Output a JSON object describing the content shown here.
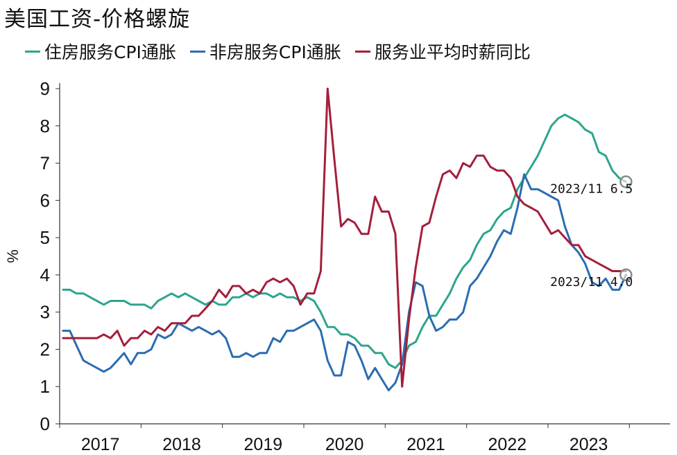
{
  "chart_data": {
    "type": "line",
    "title": "美国工资-价格螺旋",
    "ylabel": "%",
    "ylim": [
      0,
      9
    ],
    "yticks": [
      "0",
      "1",
      "2",
      "3",
      "4",
      "5",
      "6",
      "7",
      "8",
      "9"
    ],
    "xlim": [
      2016.5,
      2024.0
    ],
    "xticks": [
      {
        "label": "2017",
        "x": 2017.0
      },
      {
        "label": "2018",
        "x": 2018.0
      },
      {
        "label": "2019",
        "x": 2019.0
      },
      {
        "label": "2020",
        "x": 2020.0
      },
      {
        "label": "2021",
        "x": 2021.0
      },
      {
        "label": "2022",
        "x": 2022.0
      },
      {
        "label": "2023",
        "x": 2023.0
      }
    ],
    "grid": false,
    "legend_position": "top",
    "series": [
      {
        "name": "住房服务CPI通胀",
        "color": "#2ca58d",
        "points": [
          [
            2016.542,
            3.6
          ],
          [
            2016.625,
            3.6
          ],
          [
            2016.708,
            3.5
          ],
          [
            2016.792,
            3.5
          ],
          [
            2016.875,
            3.4
          ],
          [
            2016.958,
            3.3
          ],
          [
            2017.042,
            3.2
          ],
          [
            2017.125,
            3.3
          ],
          [
            2017.208,
            3.3
          ],
          [
            2017.292,
            3.3
          ],
          [
            2017.375,
            3.2
          ],
          [
            2017.458,
            3.2
          ],
          [
            2017.542,
            3.2
          ],
          [
            2017.625,
            3.1
          ],
          [
            2017.708,
            3.3
          ],
          [
            2017.792,
            3.4
          ],
          [
            2017.875,
            3.5
          ],
          [
            2017.958,
            3.4
          ],
          [
            2018.042,
            3.5
          ],
          [
            2018.125,
            3.4
          ],
          [
            2018.208,
            3.3
          ],
          [
            2018.292,
            3.2
          ],
          [
            2018.375,
            3.3
          ],
          [
            2018.458,
            3.2
          ],
          [
            2018.542,
            3.2
          ],
          [
            2018.625,
            3.4
          ],
          [
            2018.708,
            3.4
          ],
          [
            2018.792,
            3.5
          ],
          [
            2018.875,
            3.4
          ],
          [
            2018.958,
            3.5
          ],
          [
            2019.042,
            3.5
          ],
          [
            2019.125,
            3.4
          ],
          [
            2019.208,
            3.5
          ],
          [
            2019.292,
            3.4
          ],
          [
            2019.375,
            3.4
          ],
          [
            2019.458,
            3.3
          ],
          [
            2019.542,
            3.4
          ],
          [
            2019.625,
            3.3
          ],
          [
            2019.708,
            3.0
          ],
          [
            2019.792,
            2.6
          ],
          [
            2019.875,
            2.6
          ],
          [
            2019.958,
            2.4
          ],
          [
            2020.042,
            2.4
          ],
          [
            2020.125,
            2.3
          ],
          [
            2020.208,
            2.1
          ],
          [
            2020.292,
            2.1
          ],
          [
            2020.375,
            1.9
          ],
          [
            2020.458,
            1.9
          ],
          [
            2020.542,
            1.6
          ],
          [
            2020.625,
            1.5
          ],
          [
            2020.708,
            1.7
          ],
          [
            2020.792,
            2.1
          ],
          [
            2020.875,
            2.2
          ],
          [
            2020.958,
            2.6
          ],
          [
            2021.042,
            2.9
          ],
          [
            2021.125,
            2.9
          ],
          [
            2021.208,
            3.2
          ],
          [
            2021.292,
            3.5
          ],
          [
            2021.375,
            3.9
          ],
          [
            2021.458,
            4.2
          ],
          [
            2021.542,
            4.4
          ],
          [
            2021.625,
            4.8
          ],
          [
            2021.708,
            5.1
          ],
          [
            2021.792,
            5.2
          ],
          [
            2021.875,
            5.5
          ],
          [
            2021.958,
            5.7
          ],
          [
            2022.042,
            5.8
          ],
          [
            2022.125,
            6.3
          ],
          [
            2022.208,
            6.6
          ],
          [
            2022.292,
            6.9
          ],
          [
            2022.375,
            7.2
          ],
          [
            2022.458,
            7.6
          ],
          [
            2022.542,
            8.0
          ],
          [
            2022.625,
            8.2
          ],
          [
            2022.708,
            8.3
          ],
          [
            2022.792,
            8.2
          ],
          [
            2022.875,
            8.1
          ],
          [
            2022.958,
            7.9
          ],
          [
            2023.042,
            7.8
          ],
          [
            2023.125,
            7.3
          ],
          [
            2023.208,
            7.2
          ],
          [
            2023.292,
            6.8
          ],
          [
            2023.375,
            6.6
          ],
          [
            2023.458,
            6.5
          ]
        ]
      },
      {
        "name": "非房服务CPI通胀",
        "color": "#2b6cb0",
        "points": [
          [
            2016.542,
            2.5
          ],
          [
            2016.625,
            2.5
          ],
          [
            2016.708,
            2.1
          ],
          [
            2016.792,
            1.7
          ],
          [
            2016.875,
            1.6
          ],
          [
            2016.958,
            1.5
          ],
          [
            2017.042,
            1.4
          ],
          [
            2017.125,
            1.5
          ],
          [
            2017.208,
            1.7
          ],
          [
            2017.292,
            1.9
          ],
          [
            2017.375,
            1.6
          ],
          [
            2017.458,
            1.9
          ],
          [
            2017.542,
            1.9
          ],
          [
            2017.625,
            2.0
          ],
          [
            2017.708,
            2.4
          ],
          [
            2017.792,
            2.3
          ],
          [
            2017.875,
            2.4
          ],
          [
            2017.958,
            2.7
          ],
          [
            2018.042,
            2.6
          ],
          [
            2018.125,
            2.5
          ],
          [
            2018.208,
            2.6
          ],
          [
            2018.292,
            2.5
          ],
          [
            2018.375,
            2.4
          ],
          [
            2018.458,
            2.5
          ],
          [
            2018.542,
            2.3
          ],
          [
            2018.625,
            1.8
          ],
          [
            2018.708,
            1.8
          ],
          [
            2018.792,
            1.9
          ],
          [
            2018.875,
            1.8
          ],
          [
            2018.958,
            1.9
          ],
          [
            2019.042,
            1.9
          ],
          [
            2019.125,
            2.3
          ],
          [
            2019.208,
            2.2
          ],
          [
            2019.292,
            2.5
          ],
          [
            2019.375,
            2.5
          ],
          [
            2019.458,
            2.6
          ],
          [
            2019.542,
            2.7
          ],
          [
            2019.625,
            2.8
          ],
          [
            2019.708,
            2.5
          ],
          [
            2019.792,
            1.7
          ],
          [
            2019.875,
            1.3
          ],
          [
            2019.958,
            1.3
          ],
          [
            2020.042,
            2.2
          ],
          [
            2020.125,
            2.1
          ],
          [
            2020.208,
            1.7
          ],
          [
            2020.292,
            1.2
          ],
          [
            2020.375,
            1.5
          ],
          [
            2020.458,
            1.2
          ],
          [
            2020.542,
            0.9
          ],
          [
            2020.625,
            1.1
          ],
          [
            2020.708,
            1.6
          ],
          [
            2020.792,
            3.0
          ],
          [
            2020.875,
            3.8
          ],
          [
            2020.958,
            3.7
          ],
          [
            2021.042,
            2.9
          ],
          [
            2021.125,
            2.5
          ],
          [
            2021.208,
            2.6
          ],
          [
            2021.292,
            2.8
          ],
          [
            2021.375,
            2.8
          ],
          [
            2021.458,
            3.0
          ],
          [
            2021.542,
            3.7
          ],
          [
            2021.625,
            3.9
          ],
          [
            2021.708,
            4.2
          ],
          [
            2021.792,
            4.5
          ],
          [
            2021.875,
            4.9
          ],
          [
            2021.958,
            5.2
          ],
          [
            2022.042,
            5.1
          ],
          [
            2022.125,
            5.8
          ],
          [
            2022.208,
            6.7
          ],
          [
            2022.292,
            6.3
          ],
          [
            2022.375,
            6.3
          ],
          [
            2022.458,
            6.2
          ],
          [
            2022.542,
            6.1
          ],
          [
            2022.625,
            6.0
          ],
          [
            2022.708,
            5.3
          ],
          [
            2022.792,
            4.8
          ],
          [
            2022.875,
            4.6
          ],
          [
            2022.958,
            4.3
          ],
          [
            2023.042,
            3.8
          ],
          [
            2023.125,
            3.7
          ],
          [
            2023.208,
            3.9
          ],
          [
            2023.292,
            3.6
          ],
          [
            2023.375,
            3.6
          ],
          [
            2023.458,
            4.0
          ]
        ]
      },
      {
        "name": "服务业平均时薪同比",
        "color": "#a41e3a",
        "points": [
          [
            2016.542,
            2.3
          ],
          [
            2016.625,
            2.3
          ],
          [
            2016.708,
            2.3
          ],
          [
            2016.792,
            2.3
          ],
          [
            2016.875,
            2.3
          ],
          [
            2016.958,
            2.3
          ],
          [
            2017.042,
            2.4
          ],
          [
            2017.125,
            2.3
          ],
          [
            2017.208,
            2.5
          ],
          [
            2017.292,
            2.1
          ],
          [
            2017.375,
            2.3
          ],
          [
            2017.458,
            2.3
          ],
          [
            2017.542,
            2.5
          ],
          [
            2017.625,
            2.4
          ],
          [
            2017.708,
            2.6
          ],
          [
            2017.792,
            2.5
          ],
          [
            2017.875,
            2.7
          ],
          [
            2017.958,
            2.7
          ],
          [
            2018.042,
            2.7
          ],
          [
            2018.125,
            2.9
          ],
          [
            2018.208,
            2.9
          ],
          [
            2018.292,
            3.1
          ],
          [
            2018.375,
            3.3
          ],
          [
            2018.458,
            3.6
          ],
          [
            2018.542,
            3.4
          ],
          [
            2018.625,
            3.7
          ],
          [
            2018.708,
            3.7
          ],
          [
            2018.792,
            3.5
          ],
          [
            2018.875,
            3.6
          ],
          [
            2018.958,
            3.5
          ],
          [
            2019.042,
            3.8
          ],
          [
            2019.125,
            3.9
          ],
          [
            2019.208,
            3.8
          ],
          [
            2019.292,
            3.9
          ],
          [
            2019.375,
            3.7
          ],
          [
            2019.458,
            3.2
          ],
          [
            2019.542,
            3.5
          ],
          [
            2019.625,
            3.5
          ],
          [
            2019.708,
            4.1
          ],
          [
            2019.792,
            9.0
          ],
          [
            2019.875,
            7.1
          ],
          [
            2019.958,
            5.3
          ],
          [
            2020.042,
            5.5
          ],
          [
            2020.125,
            5.4
          ],
          [
            2020.208,
            5.1
          ],
          [
            2020.292,
            5.1
          ],
          [
            2020.375,
            6.1
          ],
          [
            2020.458,
            5.7
          ],
          [
            2020.542,
            5.7
          ],
          [
            2020.625,
            5.1
          ],
          [
            2020.708,
            1.0
          ],
          [
            2020.792,
            2.8
          ],
          [
            2020.875,
            4.2
          ],
          [
            2020.958,
            5.3
          ],
          [
            2021.042,
            5.4
          ],
          [
            2021.125,
            6.1
          ],
          [
            2021.208,
            6.7
          ],
          [
            2021.292,
            6.8
          ],
          [
            2021.375,
            6.6
          ],
          [
            2021.458,
            7.0
          ],
          [
            2021.542,
            6.9
          ],
          [
            2021.625,
            7.2
          ],
          [
            2021.708,
            7.2
          ],
          [
            2021.792,
            6.9
          ],
          [
            2021.875,
            6.8
          ],
          [
            2021.958,
            6.8
          ],
          [
            2022.042,
            6.6
          ],
          [
            2022.125,
            6.1
          ],
          [
            2022.208,
            5.9
          ],
          [
            2022.292,
            5.8
          ],
          [
            2022.375,
            5.7
          ],
          [
            2022.458,
            5.4
          ],
          [
            2022.542,
            5.1
          ],
          [
            2022.625,
            5.2
          ],
          [
            2022.708,
            5.0
          ],
          [
            2022.792,
            4.8
          ],
          [
            2022.875,
            4.8
          ],
          [
            2022.958,
            4.5
          ],
          [
            2023.042,
            4.4
          ],
          [
            2023.125,
            4.3
          ],
          [
            2023.208,
            4.2
          ],
          [
            2023.292,
            4.1
          ],
          [
            2023.375,
            4.1
          ],
          [
            2023.458,
            4.1
          ]
        ]
      }
    ],
    "annotations": [
      {
        "text": "2023/11  6.5",
        "series": 0
      },
      {
        "text": "2023/11  4.0",
        "series": 1
      }
    ]
  }
}
